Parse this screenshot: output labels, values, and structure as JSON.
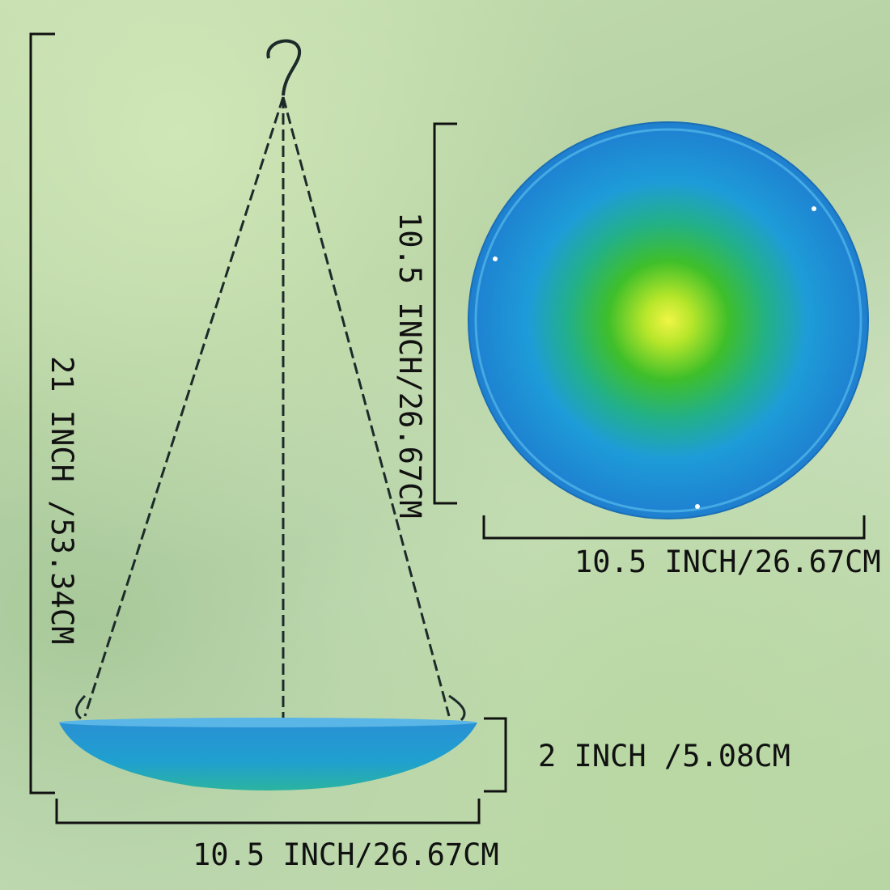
{
  "labels": {
    "total_height": "21 INCH /53.34CM",
    "plate_height": "10.5 INCH/26.67CM",
    "plate_width": "10.5 INCH/26.67CM",
    "bowl_depth": "2 INCH /5.08CM",
    "bowl_width": "10.5 INCH/26.67CM"
  },
  "colors": {
    "bowl_blue": "#1f8fd0",
    "center_yellow": "#e4f03a",
    "ring_green": "#3fbf2a",
    "chain": "#1d2a2a"
  }
}
